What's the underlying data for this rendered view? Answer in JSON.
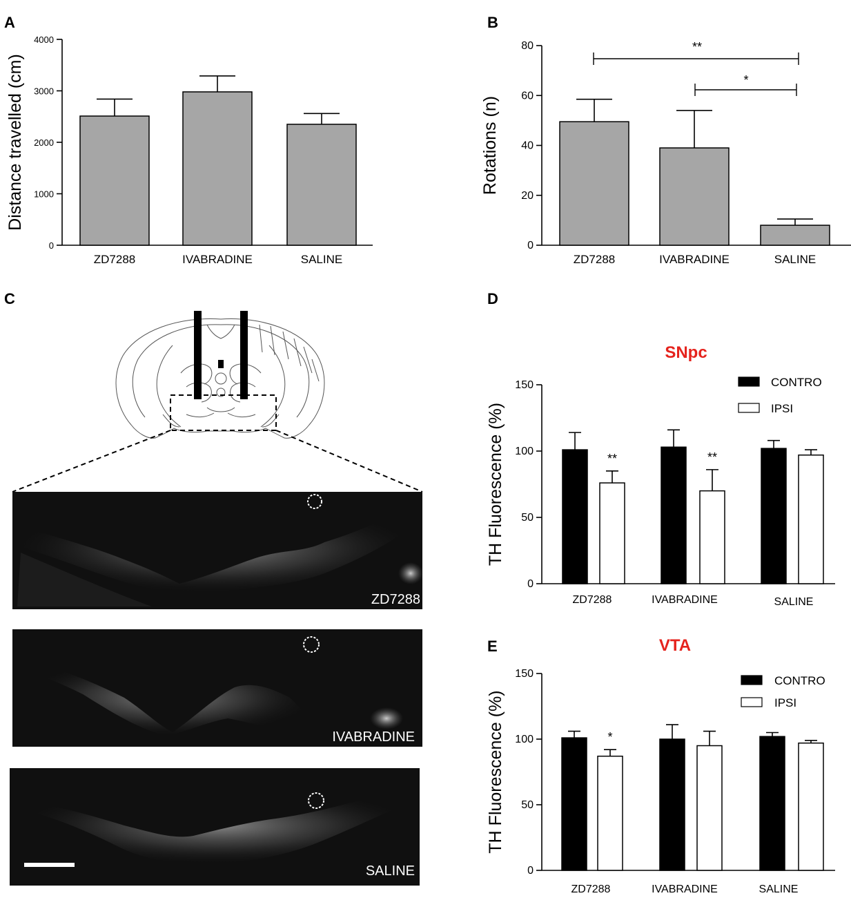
{
  "panels": {
    "A": {
      "letter": "A"
    },
    "B": {
      "letter": "B"
    },
    "C": {
      "letter": "C",
      "images": [
        "ZD7288",
        "IVABRADINE",
        "SALINE"
      ]
    },
    "D": {
      "letter": "D"
    },
    "E": {
      "letter": "E"
    }
  },
  "colors": {
    "gray_bar": "#a6a6a6",
    "black_bar": "#000000",
    "white_bar": "#ffffff",
    "subtitle": "#e5231d"
  },
  "chart_data": [
    {
      "id": "A",
      "type": "bar",
      "title": "",
      "ylabel": "Distance travelled (cm)",
      "categories": [
        "ZD7288",
        "IVABRADINE",
        "SALINE"
      ],
      "values": [
        2510,
        2980,
        2350
      ],
      "errors": [
        330,
        310,
        210
      ],
      "ylim": [
        0,
        4000
      ],
      "yticks": [
        "0",
        "1000",
        "2000",
        "3000",
        "4000"
      ]
    },
    {
      "id": "B",
      "type": "bar",
      "title": "",
      "ylabel": "Rotations (n)",
      "categories": [
        "ZD7288",
        "IVABRADINE",
        "SALINE"
      ],
      "values": [
        49.5,
        39,
        8
      ],
      "errors": [
        9,
        15,
        2.5
      ],
      "ylim": [
        0,
        80
      ],
      "yticks": [
        "0",
        "20",
        "40",
        "60",
        "80"
      ],
      "significance": [
        {
          "from": "ZD7288",
          "to": "SALINE",
          "label": "**"
        },
        {
          "from": "IVABRADINE",
          "to": "SALINE",
          "label": "*"
        }
      ]
    },
    {
      "id": "D",
      "type": "bar",
      "title": "SNpc",
      "ylabel": "TH Fluorescence (%)",
      "categories": [
        "ZD7288",
        "IVABRADINE",
        "SALINE"
      ],
      "series": [
        {
          "name": "CONTRO",
          "values": [
            101,
            103,
            102
          ],
          "errors": [
            13,
            13,
            6
          ]
        },
        {
          "name": "IPSI",
          "values": [
            76,
            70,
            97
          ],
          "errors": [
            9,
            16,
            4
          ]
        }
      ],
      "significance": [
        "",
        "**",
        "",
        "**",
        "",
        ""
      ],
      "ylim": [
        0,
        150
      ],
      "yticks": [
        "0",
        "50",
        "100",
        "150"
      ],
      "legend": "top-right"
    },
    {
      "id": "E",
      "type": "bar",
      "title": "VTA",
      "ylabel": "TH Fluorescence (%)",
      "categories": [
        "ZD7288",
        "IVABRADINE",
        "SALINE"
      ],
      "series": [
        {
          "name": "CONTRO",
          "values": [
            101,
            100,
            102
          ],
          "errors": [
            5,
            11,
            3
          ]
        },
        {
          "name": "IPSI",
          "values": [
            87,
            95,
            97
          ],
          "errors": [
            5,
            11,
            2
          ]
        }
      ],
      "significance": [
        "",
        "*",
        "",
        "",
        "",
        ""
      ],
      "ylim": [
        0,
        150
      ],
      "yticks": [
        "0",
        "50",
        "100",
        "150"
      ],
      "legend": "top-right"
    }
  ]
}
